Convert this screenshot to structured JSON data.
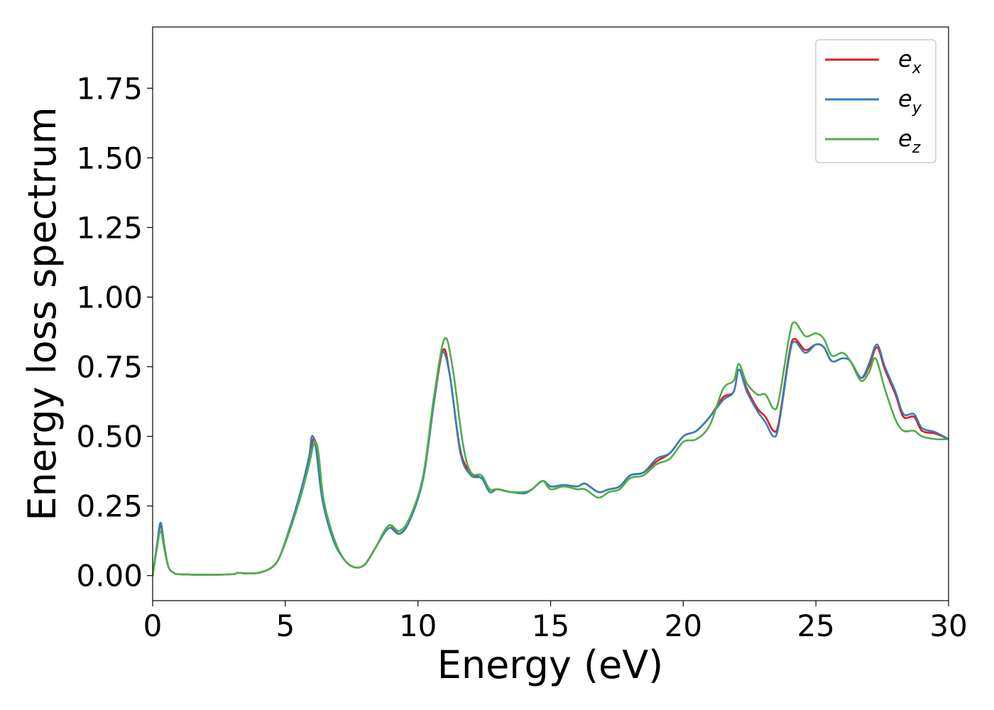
{
  "chart_data": {
    "type": "line",
    "xlabel": "Energy (eV)",
    "ylabel": "Energy loss spectrum",
    "xlim": [
      0,
      30
    ],
    "ylim": [
      -0.09,
      1.97
    ],
    "x_ticks": [
      0,
      5,
      10,
      15,
      20,
      25,
      30
    ],
    "y_ticks": [
      0.0,
      0.25,
      0.5,
      0.75,
      1.0,
      1.25,
      1.5,
      1.75
    ],
    "x_tick_labels": [
      "0",
      "5",
      "10",
      "15",
      "20",
      "25",
      "30"
    ],
    "y_tick_labels": [
      "0.00",
      "0.25",
      "0.50",
      "0.75",
      "1.00",
      "1.25",
      "1.50",
      "1.75"
    ],
    "grid": false,
    "legend_position": "top-right",
    "series": [
      {
        "name": "e",
        "subscript": "x",
        "color": "#e41a1c",
        "points": [
          [
            0,
            0.0
          ],
          [
            0.15,
            0.1
          ],
          [
            0.3,
            0.18
          ],
          [
            0.45,
            0.1
          ],
          [
            0.6,
            0.03
          ],
          [
            0.8,
            0.01
          ],
          [
            1,
            0.005
          ],
          [
            2,
            0.003
          ],
          [
            3,
            0.005
          ],
          [
            3.2,
            0.01
          ],
          [
            3.5,
            0.008
          ],
          [
            4,
            0.01
          ],
          [
            4.5,
            0.03
          ],
          [
            4.8,
            0.07
          ],
          [
            5.2,
            0.18
          ],
          [
            5.6,
            0.3
          ],
          [
            5.9,
            0.42
          ],
          [
            6.05,
            0.49
          ],
          [
            6.2,
            0.45
          ],
          [
            6.4,
            0.28
          ],
          [
            6.8,
            0.14
          ],
          [
            7.2,
            0.06
          ],
          [
            7.6,
            0.03
          ],
          [
            8.0,
            0.04
          ],
          [
            8.4,
            0.1
          ],
          [
            8.9,
            0.18
          ],
          [
            9.3,
            0.15
          ],
          [
            9.7,
            0.2
          ],
          [
            10.2,
            0.35
          ],
          [
            10.6,
            0.62
          ],
          [
            10.95,
            0.81
          ],
          [
            11.2,
            0.72
          ],
          [
            11.6,
            0.45
          ],
          [
            12.0,
            0.37
          ],
          [
            12.4,
            0.35
          ],
          [
            12.7,
            0.31
          ],
          [
            13.0,
            0.31
          ],
          [
            13.5,
            0.3
          ],
          [
            14.0,
            0.3
          ],
          [
            14.3,
            0.31
          ],
          [
            14.7,
            0.34
          ],
          [
            15.0,
            0.32
          ],
          [
            15.5,
            0.325
          ],
          [
            16.0,
            0.32
          ],
          [
            16.3,
            0.33
          ],
          [
            16.8,
            0.3
          ],
          [
            17.2,
            0.31
          ],
          [
            17.6,
            0.32
          ],
          [
            18.0,
            0.36
          ],
          [
            18.5,
            0.37
          ],
          [
            19.0,
            0.41
          ],
          [
            19.5,
            0.44
          ],
          [
            20.0,
            0.5
          ],
          [
            20.5,
            0.52
          ],
          [
            21.0,
            0.57
          ],
          [
            21.5,
            0.64
          ],
          [
            21.9,
            0.66
          ],
          [
            22.1,
            0.74
          ],
          [
            22.4,
            0.67
          ],
          [
            22.8,
            0.6
          ],
          [
            23.1,
            0.57
          ],
          [
            23.4,
            0.52
          ],
          [
            23.6,
            0.55
          ],
          [
            24.0,
            0.8
          ],
          [
            24.2,
            0.85
          ],
          [
            24.6,
            0.81
          ],
          [
            25.0,
            0.83
          ],
          [
            25.3,
            0.82
          ],
          [
            25.6,
            0.77
          ],
          [
            26.0,
            0.78
          ],
          [
            26.3,
            0.77
          ],
          [
            26.7,
            0.71
          ],
          [
            27.0,
            0.75
          ],
          [
            27.3,
            0.82
          ],
          [
            27.6,
            0.74
          ],
          [
            28.0,
            0.65
          ],
          [
            28.3,
            0.57
          ],
          [
            28.7,
            0.57
          ],
          [
            29.0,
            0.52
          ],
          [
            29.5,
            0.51
          ],
          [
            30.0,
            0.49
          ]
        ]
      },
      {
        "name": "e",
        "subscript": "y",
        "color": "#377eb8",
        "points": [
          [
            0,
            0.0
          ],
          [
            0.15,
            0.1
          ],
          [
            0.3,
            0.19
          ],
          [
            0.45,
            0.1
          ],
          [
            0.6,
            0.03
          ],
          [
            0.8,
            0.01
          ],
          [
            1,
            0.005
          ],
          [
            2,
            0.003
          ],
          [
            3,
            0.005
          ],
          [
            3.2,
            0.01
          ],
          [
            3.5,
            0.008
          ],
          [
            4,
            0.01
          ],
          [
            4.5,
            0.03
          ],
          [
            4.8,
            0.07
          ],
          [
            5.2,
            0.18
          ],
          [
            5.6,
            0.31
          ],
          [
            5.9,
            0.43
          ],
          [
            6.0,
            0.5
          ],
          [
            6.15,
            0.46
          ],
          [
            6.4,
            0.27
          ],
          [
            6.8,
            0.13
          ],
          [
            7.2,
            0.06
          ],
          [
            7.6,
            0.03
          ],
          [
            8.0,
            0.04
          ],
          [
            8.4,
            0.1
          ],
          [
            8.9,
            0.17
          ],
          [
            9.3,
            0.15
          ],
          [
            9.7,
            0.2
          ],
          [
            10.2,
            0.35
          ],
          [
            10.6,
            0.62
          ],
          [
            10.9,
            0.8
          ],
          [
            11.2,
            0.72
          ],
          [
            11.6,
            0.44
          ],
          [
            12.0,
            0.36
          ],
          [
            12.4,
            0.35
          ],
          [
            12.7,
            0.3
          ],
          [
            13.0,
            0.31
          ],
          [
            13.5,
            0.3
          ],
          [
            14.0,
            0.295
          ],
          [
            14.3,
            0.31
          ],
          [
            14.7,
            0.34
          ],
          [
            15.0,
            0.32
          ],
          [
            15.5,
            0.325
          ],
          [
            16.0,
            0.32
          ],
          [
            16.3,
            0.33
          ],
          [
            16.8,
            0.3
          ],
          [
            17.2,
            0.31
          ],
          [
            17.6,
            0.32
          ],
          [
            18.0,
            0.36
          ],
          [
            18.5,
            0.37
          ],
          [
            19.0,
            0.42
          ],
          [
            19.5,
            0.44
          ],
          [
            20.0,
            0.5
          ],
          [
            20.5,
            0.52
          ],
          [
            21.0,
            0.57
          ],
          [
            21.5,
            0.63
          ],
          [
            21.9,
            0.66
          ],
          [
            22.1,
            0.74
          ],
          [
            22.4,
            0.66
          ],
          [
            22.8,
            0.59
          ],
          [
            23.1,
            0.55
          ],
          [
            23.4,
            0.5
          ],
          [
            23.6,
            0.54
          ],
          [
            24.0,
            0.79
          ],
          [
            24.2,
            0.84
          ],
          [
            24.6,
            0.8
          ],
          [
            25.0,
            0.83
          ],
          [
            25.3,
            0.82
          ],
          [
            25.6,
            0.77
          ],
          [
            26.0,
            0.78
          ],
          [
            26.3,
            0.77
          ],
          [
            26.7,
            0.71
          ],
          [
            27.0,
            0.76
          ],
          [
            27.3,
            0.83
          ],
          [
            27.6,
            0.75
          ],
          [
            28.0,
            0.66
          ],
          [
            28.3,
            0.58
          ],
          [
            28.7,
            0.58
          ],
          [
            29.0,
            0.53
          ],
          [
            29.5,
            0.515
          ],
          [
            30.0,
            0.49
          ]
        ]
      },
      {
        "name": "e",
        "subscript": "z",
        "color": "#4daf4a",
        "points": [
          [
            0,
            0.0
          ],
          [
            0.15,
            0.09
          ],
          [
            0.3,
            0.16
          ],
          [
            0.45,
            0.09
          ],
          [
            0.6,
            0.03
          ],
          [
            0.8,
            0.01
          ],
          [
            1,
            0.005
          ],
          [
            2,
            0.003
          ],
          [
            3,
            0.005
          ],
          [
            3.2,
            0.01
          ],
          [
            3.5,
            0.008
          ],
          [
            4,
            0.01
          ],
          [
            4.5,
            0.03
          ],
          [
            4.8,
            0.07
          ],
          [
            5.2,
            0.17
          ],
          [
            5.6,
            0.29
          ],
          [
            5.9,
            0.4
          ],
          [
            6.1,
            0.48
          ],
          [
            6.25,
            0.44
          ],
          [
            6.45,
            0.27
          ],
          [
            6.85,
            0.13
          ],
          [
            7.2,
            0.06
          ],
          [
            7.6,
            0.03
          ],
          [
            8.0,
            0.04
          ],
          [
            8.4,
            0.1
          ],
          [
            8.9,
            0.18
          ],
          [
            9.3,
            0.16
          ],
          [
            9.7,
            0.21
          ],
          [
            10.2,
            0.36
          ],
          [
            10.6,
            0.64
          ],
          [
            11.0,
            0.85
          ],
          [
            11.3,
            0.75
          ],
          [
            11.7,
            0.47
          ],
          [
            12.0,
            0.37
          ],
          [
            12.4,
            0.36
          ],
          [
            12.7,
            0.31
          ],
          [
            13.0,
            0.31
          ],
          [
            13.5,
            0.3
          ],
          [
            14.0,
            0.3
          ],
          [
            14.3,
            0.31
          ],
          [
            14.7,
            0.34
          ],
          [
            15.0,
            0.31
          ],
          [
            15.5,
            0.32
          ],
          [
            16.0,
            0.31
          ],
          [
            16.3,
            0.31
          ],
          [
            16.8,
            0.28
          ],
          [
            17.2,
            0.3
          ],
          [
            17.6,
            0.31
          ],
          [
            18.0,
            0.35
          ],
          [
            18.5,
            0.36
          ],
          [
            19.0,
            0.4
          ],
          [
            19.5,
            0.42
          ],
          [
            20.0,
            0.48
          ],
          [
            20.5,
            0.49
          ],
          [
            21.0,
            0.54
          ],
          [
            21.5,
            0.67
          ],
          [
            21.9,
            0.7
          ],
          [
            22.1,
            0.76
          ],
          [
            22.4,
            0.69
          ],
          [
            22.8,
            0.65
          ],
          [
            23.1,
            0.65
          ],
          [
            23.4,
            0.6
          ],
          [
            23.6,
            0.63
          ],
          [
            24.0,
            0.86
          ],
          [
            24.2,
            0.91
          ],
          [
            24.6,
            0.86
          ],
          [
            25.0,
            0.87
          ],
          [
            25.3,
            0.85
          ],
          [
            25.6,
            0.79
          ],
          [
            26.0,
            0.8
          ],
          [
            26.3,
            0.77
          ],
          [
            26.7,
            0.7
          ],
          [
            27.0,
            0.73
          ],
          [
            27.25,
            0.78
          ],
          [
            27.6,
            0.67
          ],
          [
            28.0,
            0.56
          ],
          [
            28.3,
            0.52
          ],
          [
            28.7,
            0.52
          ],
          [
            29.0,
            0.5
          ],
          [
            29.5,
            0.49
          ],
          [
            30.0,
            0.49
          ]
        ]
      }
    ]
  }
}
